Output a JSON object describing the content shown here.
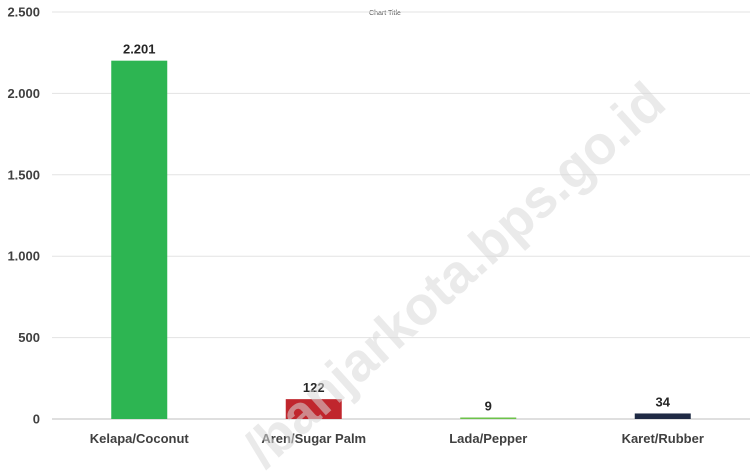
{
  "chart_data": {
    "type": "bar",
    "title": "Chart Title",
    "categories": [
      "Kelapa/Coconut",
      "Aren/Sugar Palm",
      "Lada/Pepper",
      "Karet/Rubber"
    ],
    "values": [
      2201,
      122,
      9,
      34
    ],
    "data_labels": [
      "2.201",
      "122",
      "9",
      "34"
    ],
    "colors": [
      "#2db552",
      "#c0262d",
      "#6cc24a",
      "#1f2a44"
    ],
    "ylim": [
      0,
      2500
    ],
    "yticks": [
      0,
      500,
      1000,
      1500,
      2000,
      2500
    ],
    "ytick_labels": [
      "0",
      "500",
      "1.000",
      "1.500",
      "2.000",
      "2.500"
    ],
    "grid": true,
    "legend": "none"
  },
  "watermark": "/banjarkota.bps.go.id"
}
